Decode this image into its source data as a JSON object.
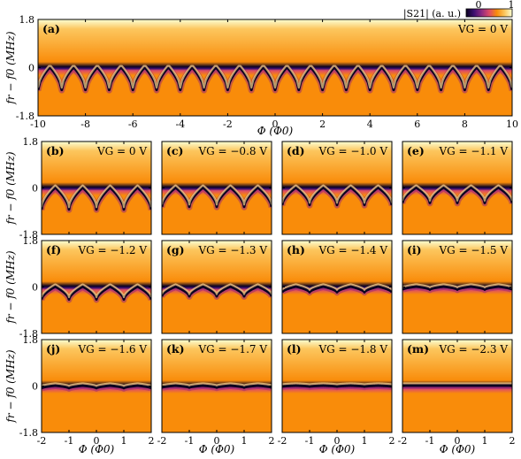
{
  "colorbar": {
    "label": "|S21| (a. u.)",
    "min_label": "0",
    "max_label": "1",
    "colors": [
      "#0b0220",
      "#3b0f70",
      "#8c2981",
      "#dd4a68",
      "#f98c0a",
      "#fcc65d",
      "#fcffd4"
    ]
  },
  "y_axis": {
    "label": "fr − f0 (MHz)",
    "ticks": [
      "1.8",
      "0",
      "-1.8"
    ]
  },
  "x_axis": {
    "label": "Φ (Φ0)"
  },
  "chart_data": [
    {
      "type": "heatmap",
      "panel": "(a)",
      "annotation": "VG = 0 V",
      "xlim": [
        -10,
        10
      ],
      "ylim": [
        -1.8,
        1.8
      ],
      "x_ticks": [
        "-10",
        "-8",
        "-6",
        "-4",
        "-2",
        "0",
        "2",
        "4",
        "6",
        "8",
        "10"
      ],
      "y_ticks": [
        "1.8",
        "0",
        "-1.8"
      ],
      "xlabel": "Φ (Φ0)",
      "ylabel": "fr − f0 (MHz)",
      "dip_depth_MHz": 0.85
    },
    {
      "type": "heatmap",
      "panel": "(b)",
      "annotation": "VG = 0 V",
      "xlim": [
        -2,
        2
      ],
      "ylim": [
        -1.8,
        1.8
      ],
      "dip_depth_MHz": 0.85
    },
    {
      "type": "heatmap",
      "panel": "(c)",
      "annotation": "VG = −0.8 V",
      "xlim": [
        -2,
        2
      ],
      "ylim": [
        -1.8,
        1.8
      ],
      "dip_depth_MHz": 0.75
    },
    {
      "type": "heatmap",
      "panel": "(d)",
      "annotation": "VG = −1.0 V",
      "xlim": [
        -2,
        2
      ],
      "ylim": [
        -1.8,
        1.8
      ],
      "dip_depth_MHz": 0.68
    },
    {
      "type": "heatmap",
      "panel": "(e)",
      "annotation": "VG = −1.1 V",
      "xlim": [
        -2,
        2
      ],
      "ylim": [
        -1.8,
        1.8
      ],
      "dip_depth_MHz": 0.6
    },
    {
      "type": "heatmap",
      "panel": "(f)",
      "annotation": "VG = −1.2 V",
      "xlim": [
        -2,
        2
      ],
      "ylim": [
        -1.8,
        1.8
      ],
      "dip_depth_MHz": 0.5
    },
    {
      "type": "heatmap",
      "panel": "(g)",
      "annotation": "VG = −1.3 V",
      "xlim": [
        -2,
        2
      ],
      "ylim": [
        -1.8,
        1.8
      ],
      "dip_depth_MHz": 0.38
    },
    {
      "type": "heatmap",
      "panel": "(h)",
      "annotation": "VG = −1.4 V",
      "xlim": [
        -2,
        2
      ],
      "ylim": [
        -1.8,
        1.8
      ],
      "dip_depth_MHz": 0.22
    },
    {
      "type": "heatmap",
      "panel": "(i)",
      "annotation": "VG = −1.5 V",
      "xlim": [
        -2,
        2
      ],
      "ylim": [
        -1.8,
        1.8
      ],
      "dip_depth_MHz": 0.12
    },
    {
      "type": "heatmap",
      "panel": "(j)",
      "annotation": "VG = −1.6 V",
      "xlim": [
        -2,
        2
      ],
      "ylim": [
        -1.8,
        1.8
      ],
      "dip_depth_MHz": 0.1
    },
    {
      "type": "heatmap",
      "panel": "(k)",
      "annotation": "VG = −1.7 V",
      "xlim": [
        -2,
        2
      ],
      "ylim": [
        -1.8,
        1.8
      ],
      "dip_depth_MHz": 0.08
    },
    {
      "type": "heatmap",
      "panel": "(l)",
      "annotation": "VG = −1.8 V",
      "xlim": [
        -2,
        2
      ],
      "ylim": [
        -1.8,
        1.8
      ],
      "dip_depth_MHz": 0.04
    },
    {
      "type": "heatmap",
      "panel": "(m)",
      "annotation": "VG = −2.3 V",
      "xlim": [
        -2,
        2
      ],
      "ylim": [
        -1.8,
        1.8
      ],
      "dip_depth_MHz": 0.0
    }
  ],
  "small_x_ticks": [
    "-2",
    "-1",
    "0",
    "1",
    "2"
  ]
}
